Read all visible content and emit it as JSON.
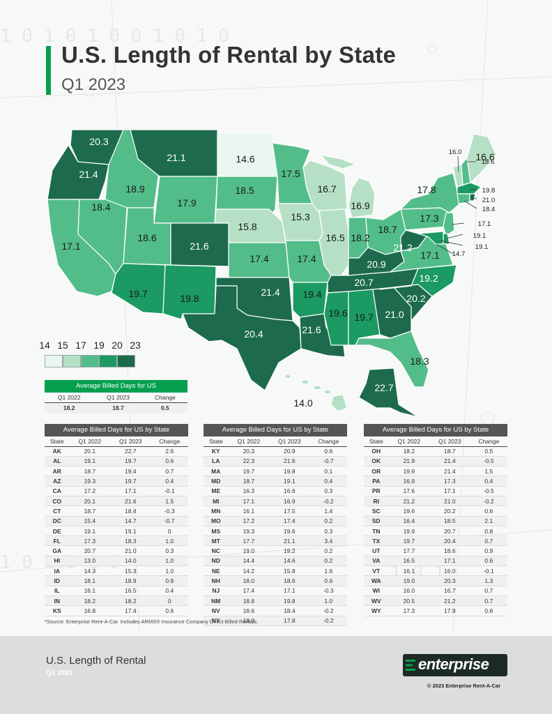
{
  "header": {
    "title": "U.S. Length of Rental by State",
    "subtitle": "Q1 2023"
  },
  "colors": {
    "brand": "#05a04f",
    "c1": "#eaf6ef",
    "c2": "#b6e0c6",
    "c3": "#53bd8a",
    "c4": "#1b9a63",
    "c5": "#1d6b4c"
  },
  "legend": {
    "values": [
      "14",
      "15",
      "17",
      "19",
      "20",
      "23"
    ]
  },
  "map_labels": {
    "WA": "20.3",
    "OR": "21.4",
    "CA": "17.1",
    "NV": "18.4",
    "ID": "18.9",
    "MT": "21.1",
    "WY": "17.9",
    "UT": "18.6",
    "AZ": "19.7",
    "CO": "21.6",
    "NM": "19.8",
    "ND": "14.6",
    "SD": "18.5",
    "NE": "15.8",
    "KS": "17.4",
    "OK": "21.4",
    "TX": "20.4",
    "MN": "17.5",
    "IA": "15.3",
    "MO": "17.4",
    "AR": "19.4",
    "LA": "21.6",
    "WI": "16.7",
    "IL": "16.5",
    "MI": "16.9",
    "IN": "18.2",
    "OH": "18.7",
    "KY": "20.9",
    "TN": "20.7",
    "MS": "19.6",
    "AL": "19.7",
    "GA": "21.0",
    "FL": "18.3",
    "SC": "20.2",
    "NC": "19.2",
    "VA": "17.1",
    "WV": "21.2",
    "PA": "17.3",
    "NY": "17.8",
    "AK": "22.7",
    "HI": "14.0",
    "VT": "16.0",
    "ME": "16.6",
    "NH": "18.6",
    "MA": "19.8",
    "RI": "21.0",
    "CT": "18.4",
    "NJ": "17.1",
    "DE": "19.1",
    "MD": "19.1",
    "DC": "14.7"
  },
  "us_table": {
    "title": "Average Billed Days for US",
    "headers": [
      "Q1 2022",
      "Q1 2023",
      "Change"
    ],
    "row": [
      "18.2",
      "18.7",
      "0.5"
    ]
  },
  "state_tables": {
    "title": "Average Billed Days for US by State",
    "headers": [
      "State",
      "Q1 2022",
      "Q1 2023",
      "Change"
    ],
    "t1": [
      [
        "AK",
        "20.1",
        "22.7",
        "2.6"
      ],
      [
        "AL",
        "19.1",
        "19.7",
        "0.6"
      ],
      [
        "AR",
        "18.7",
        "19.4",
        "0.7"
      ],
      [
        "AZ",
        "19.3",
        "19.7",
        "0.4"
      ],
      [
        "CA",
        "17.2",
        "17.1",
        "-0.1"
      ],
      [
        "CO",
        "20.1",
        "21.6",
        "1.5"
      ],
      [
        "CT",
        "18.7",
        "18.4",
        "-0.3"
      ],
      [
        "DC",
        "15.4",
        "14.7",
        "-0.7"
      ],
      [
        "DE",
        "19.1",
        "19.1",
        "0"
      ],
      [
        "FL",
        "17.3",
        "18.3",
        "1.0"
      ],
      [
        "GA",
        "20.7",
        "21.0",
        "0.3"
      ],
      [
        "HI",
        "13.0",
        "14.0",
        "1.0"
      ],
      [
        "IA",
        "14.3",
        "15.3",
        "1.0"
      ],
      [
        "ID",
        "18.1",
        "18.9",
        "0.8"
      ],
      [
        "IL",
        "16.1",
        "16.5",
        "0.4"
      ],
      [
        "IN",
        "18.2",
        "18.2",
        "0"
      ],
      [
        "KS",
        "16.8",
        "17.4",
        "0.6"
      ]
    ],
    "t2": [
      [
        "KY",
        "20.3",
        "20.9",
        "0.6"
      ],
      [
        "LA",
        "22.3",
        "21.6",
        "-0.7"
      ],
      [
        "MA",
        "19.7",
        "19.8",
        "0.1"
      ],
      [
        "MD",
        "18.7",
        "19.1",
        "0.4"
      ],
      [
        "ME",
        "16.3",
        "16.6",
        "0.3"
      ],
      [
        "MI",
        "17.1",
        "16.9",
        "-0.2"
      ],
      [
        "MN",
        "16.1",
        "17.5",
        "1.4"
      ],
      [
        "MO",
        "17.2",
        "17.4",
        "0.2"
      ],
      [
        "MS",
        "19.3",
        "19.6",
        "0.3"
      ],
      [
        "MT",
        "17.7",
        "21.1",
        "3.4"
      ],
      [
        "NC",
        "19.0",
        "19.2",
        "0.2"
      ],
      [
        "ND",
        "14.4",
        "14.6",
        "0.2"
      ],
      [
        "NE",
        "14.2",
        "15.8",
        "1.6"
      ],
      [
        "NH",
        "18.0",
        "18.6",
        "0.6"
      ],
      [
        "NJ",
        "17.4",
        "17.1",
        "-0.3"
      ],
      [
        "NM",
        "18.8",
        "19.8",
        "1.0"
      ],
      [
        "NV",
        "18.6",
        "18.4",
        "-0.2"
      ],
      [
        "NY",
        "18.0",
        "17.8",
        "-0.2"
      ]
    ],
    "t3": [
      [
        "OH",
        "18.2",
        "18.7",
        "0.5"
      ],
      [
        "OK",
        "21.9",
        "21.4",
        "-0.5"
      ],
      [
        "OR",
        "19.9",
        "21.4",
        "1.5"
      ],
      [
        "PA",
        "16.9",
        "17.3",
        "0.4"
      ],
      [
        "PR",
        "17.6",
        "17.1",
        "-0.5"
      ],
      [
        "RI",
        "21.2",
        "21.0",
        "-0.2"
      ],
      [
        "SC",
        "19.6",
        "20.2",
        "0.6"
      ],
      [
        "SD",
        "16.4",
        "18.5",
        "2.1"
      ],
      [
        "TN",
        "19.9",
        "20.7",
        "0.8"
      ],
      [
        "TX",
        "19.7",
        "20.4",
        "0.7"
      ],
      [
        "UT",
        "17.7",
        "18.6",
        "0.9"
      ],
      [
        "VA",
        "16.5",
        "17.1",
        "0.6"
      ],
      [
        "VT",
        "16.1",
        "16.0",
        "-0.1"
      ],
      [
        "WA",
        "19.0",
        "20.3",
        "1.3"
      ],
      [
        "WI",
        "16.0",
        "16.7",
        "0.7"
      ],
      [
        "WV",
        "20.5",
        "21.2",
        "0.7"
      ],
      [
        "WY",
        "17.3",
        "17.9",
        "0.6"
      ]
    ]
  },
  "footnote": "*Source: Enterprise Rent-A-Car. Includes ARMS® Insurance Company Direct Billed Rentals.",
  "footer": {
    "title": "U.S. Length of Rental",
    "subtitle": "Q1 2023",
    "logo": "enterprise",
    "copyright": "© 2023 Enterprise Rent-A-Car"
  }
}
